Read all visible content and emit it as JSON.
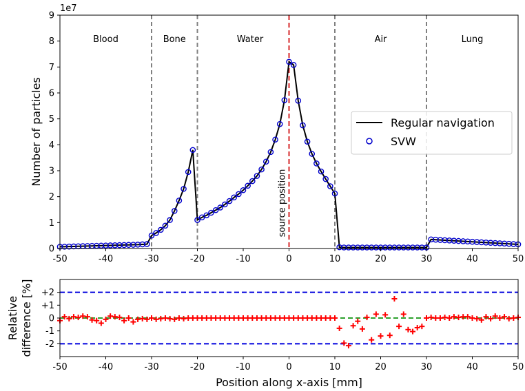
{
  "chart_data": [
    {
      "type": "line",
      "ylabel": "Number of particles",
      "y_multiplier_label": "1e7",
      "xlim": [
        -50,
        50
      ],
      "ylim": [
        0,
        9
      ],
      "x_ticks": [
        -50,
        -40,
        -30,
        -20,
        -10,
        0,
        10,
        20,
        30,
        40,
        50
      ],
      "x_tick_labels": [
        "-50",
        "-40",
        "-30",
        "-20",
        "-10",
        "0",
        "10",
        "20",
        "30",
        "40",
        "50"
      ],
      "y_ticks": [
        0,
        1,
        2,
        3,
        4,
        5,
        6,
        7,
        8,
        9
      ],
      "y_tick_labels": [
        "0",
        "1",
        "2",
        "3",
        "4",
        "5",
        "6",
        "7",
        "8",
        "9"
      ],
      "grid": false,
      "legend_placement": "center-right",
      "regions": [
        {
          "label": "Blood",
          "x_center": -40
        },
        {
          "label": "Bone",
          "x_center": -25
        },
        {
          "label": "Water",
          "x_center": -8.5
        },
        {
          "label": "Air",
          "x_center": 20
        },
        {
          "label": "Lung",
          "x_center": 40
        }
      ],
      "boundaries": [
        -30,
        -20,
        10,
        30
      ],
      "source_position": {
        "x": 0,
        "label": "source position",
        "color": "#d62728"
      },
      "series": [
        {
          "name": "Regular navigation",
          "style": "line",
          "color": "#000000",
          "x": [
            -50,
            -49,
            -48,
            -47,
            -46,
            -45,
            -44,
            -43,
            -42,
            -41,
            -40,
            -39,
            -38,
            -37,
            -36,
            -35,
            -34,
            -33,
            -32,
            -31,
            -30,
            -29,
            -28,
            -27,
            -26,
            -25,
            -24,
            -23,
            -22,
            -21,
            -20,
            -19,
            -18,
            -17,
            -16,
            -15,
            -14,
            -13,
            -12,
            -11,
            -10,
            -9,
            -8,
            -7,
            -6,
            -5,
            -4,
            -3,
            -2,
            -1,
            0,
            1,
            2,
            3,
            4,
            5,
            6,
            7,
            8,
            9,
            10,
            11,
            12,
            13,
            14,
            15,
            16,
            17,
            18,
            19,
            20,
            21,
            22,
            23,
            24,
            25,
            26,
            27,
            28,
            29,
            30,
            31,
            32,
            33,
            34,
            35,
            36,
            37,
            38,
            39,
            40,
            41,
            42,
            43,
            44,
            45,
            46,
            47,
            48,
            49,
            50
          ],
          "y": [
            0.07,
            0.07,
            0.075,
            0.08,
            0.085,
            0.09,
            0.095,
            0.1,
            0.105,
            0.11,
            0.115,
            0.12,
            0.125,
            0.13,
            0.135,
            0.14,
            0.145,
            0.15,
            0.16,
            0.17,
            0.5,
            0.6,
            0.72,
            0.88,
            1.1,
            1.45,
            1.85,
            2.3,
            2.95,
            3.8,
            1.1,
            1.2,
            1.28,
            1.38,
            1.48,
            1.58,
            1.7,
            1.83,
            1.97,
            2.1,
            2.25,
            2.42,
            2.6,
            2.8,
            3.05,
            3.35,
            3.72,
            4.2,
            4.8,
            5.72,
            7.2,
            7.08,
            5.7,
            4.75,
            4.12,
            3.65,
            3.28,
            2.97,
            2.68,
            2.4,
            2.12,
            0.05,
            0.04,
            0.04,
            0.04,
            0.04,
            0.04,
            0.04,
            0.04,
            0.04,
            0.04,
            0.04,
            0.04,
            0.04,
            0.04,
            0.04,
            0.04,
            0.04,
            0.04,
            0.04,
            0.04,
            0.35,
            0.34,
            0.33,
            0.32,
            0.31,
            0.3,
            0.29,
            0.28,
            0.27,
            0.26,
            0.25,
            0.24,
            0.23,
            0.22,
            0.21,
            0.2,
            0.19,
            0.18,
            0.17,
            0.16
          ]
        },
        {
          "name": "SVW",
          "style": "markers",
          "marker": "open-circle",
          "color": "#0000cc",
          "x": [
            -50,
            -49,
            -48,
            -47,
            -46,
            -45,
            -44,
            -43,
            -42,
            -41,
            -40,
            -39,
            -38,
            -37,
            -36,
            -35,
            -34,
            -33,
            -32,
            -31,
            -30,
            -29,
            -28,
            -27,
            -26,
            -25,
            -24,
            -23,
            -22,
            -21,
            -20,
            -19,
            -18,
            -17,
            -16,
            -15,
            -14,
            -13,
            -12,
            -11,
            -10,
            -9,
            -8,
            -7,
            -6,
            -5,
            -4,
            -3,
            -2,
            -1,
            0,
            1,
            2,
            3,
            4,
            5,
            6,
            7,
            8,
            9,
            10,
            11,
            12,
            13,
            14,
            15,
            16,
            17,
            18,
            19,
            20,
            21,
            22,
            23,
            24,
            25,
            26,
            27,
            28,
            29,
            30,
            31,
            32,
            33,
            34,
            35,
            36,
            37,
            38,
            39,
            40,
            41,
            42,
            43,
            44,
            45,
            46,
            47,
            48,
            49,
            50
          ],
          "y": [
            0.07,
            0.07,
            0.075,
            0.08,
            0.085,
            0.09,
            0.095,
            0.1,
            0.105,
            0.11,
            0.115,
            0.12,
            0.125,
            0.13,
            0.135,
            0.14,
            0.145,
            0.15,
            0.16,
            0.17,
            0.5,
            0.6,
            0.72,
            0.88,
            1.1,
            1.45,
            1.85,
            2.3,
            2.95,
            3.8,
            1.1,
            1.2,
            1.28,
            1.38,
            1.48,
            1.58,
            1.7,
            1.83,
            1.97,
            2.1,
            2.25,
            2.42,
            2.6,
            2.8,
            3.05,
            3.35,
            3.72,
            4.2,
            4.8,
            5.72,
            7.2,
            7.08,
            5.7,
            4.75,
            4.12,
            3.65,
            3.28,
            2.97,
            2.68,
            2.4,
            2.12,
            0.05,
            0.04,
            0.04,
            0.04,
            0.04,
            0.04,
            0.04,
            0.04,
            0.04,
            0.04,
            0.04,
            0.04,
            0.04,
            0.04,
            0.04,
            0.04,
            0.04,
            0.04,
            0.04,
            0.04,
            0.35,
            0.34,
            0.33,
            0.32,
            0.31,
            0.3,
            0.29,
            0.28,
            0.27,
            0.26,
            0.25,
            0.24,
            0.23,
            0.22,
            0.21,
            0.2,
            0.19,
            0.18,
            0.17,
            0.16
          ]
        }
      ]
    },
    {
      "type": "scatter",
      "xlabel": "Position along x-axis [mm]",
      "ylabel_lines": [
        "Relative",
        "difference [%]"
      ],
      "xlim": [
        -50,
        50
      ],
      "ylim": [
        -3,
        3
      ],
      "x_ticks": [
        -50,
        -40,
        -30,
        -20,
        -10,
        0,
        10,
        20,
        30,
        40,
        50
      ],
      "x_tick_labels": [
        "-50",
        "-40",
        "-30",
        "-20",
        "-10",
        "0",
        "10",
        "20",
        "30",
        "40",
        "50"
      ],
      "y_ticks": [
        2,
        1,
        0,
        -1,
        -2
      ],
      "y_tick_labels": [
        "+2",
        "+1",
        "0",
        "-1",
        "-2"
      ],
      "grid": false,
      "reference_lines": [
        {
          "y": 2,
          "color": "#0000dd"
        },
        {
          "y": -2,
          "color": "#0000dd"
        },
        {
          "y": 0,
          "color": "#2ca02c"
        }
      ],
      "series": [
        {
          "marker": "plus",
          "color": "#ff0000",
          "x": [
            -50,
            -49,
            -48,
            -47,
            -46,
            -45,
            -44,
            -43,
            -42,
            -41,
            -40,
            -39,
            -38,
            -37,
            -36,
            -35,
            -34,
            -33,
            -32,
            -31,
            -30,
            -29,
            -28,
            -27,
            -26,
            -25,
            -24,
            -23,
            -22,
            -21,
            -20,
            -19,
            -18,
            -17,
            -16,
            -15,
            -14,
            -13,
            -12,
            -11,
            -10,
            -9,
            -8,
            -7,
            -6,
            -5,
            -4,
            -3,
            -2,
            -1,
            0,
            1,
            2,
            3,
            4,
            5,
            6,
            7,
            8,
            9,
            10,
            11,
            12,
            13,
            14,
            15,
            16,
            17,
            18,
            19,
            20,
            21,
            22,
            23,
            24,
            25,
            26,
            27,
            28,
            29,
            30,
            31,
            32,
            33,
            34,
            35,
            36,
            37,
            38,
            39,
            40,
            41,
            42,
            43,
            44,
            45,
            46,
            47,
            48,
            49,
            50
          ],
          "y": [
            -0.2,
            0.1,
            -0.05,
            0.1,
            0.05,
            0.15,
            0.1,
            -0.15,
            -0.2,
            -0.4,
            -0.1,
            0.15,
            0.1,
            0.05,
            -0.2,
            0.0,
            -0.3,
            -0.1,
            -0.05,
            -0.1,
            0.0,
            -0.1,
            -0.05,
            0.0,
            -0.05,
            -0.1,
            0.0,
            -0.05,
            0.0,
            0.0,
            0.0,
            0.0,
            0.0,
            0.0,
            0.0,
            0.0,
            0.0,
            0.0,
            0.0,
            0.0,
            0.0,
            0.0,
            0.0,
            0.0,
            0.0,
            0.0,
            0.0,
            0.0,
            0.0,
            0.0,
            0.0,
            0.0,
            0.0,
            0.0,
            0.0,
            0.0,
            0.0,
            0.0,
            0.0,
            0.0,
            0.0,
            -0.8,
            -1.95,
            -2.15,
            -0.6,
            -0.25,
            -0.85,
            0.05,
            -1.7,
            0.3,
            -1.4,
            0.25,
            -1.35,
            1.5,
            -0.65,
            0.3,
            -0.9,
            -1.05,
            -0.75,
            -0.65,
            0.0,
            0.05,
            0.0,
            0.0,
            0.05,
            0.0,
            0.1,
            0.05,
            0.1,
            0.1,
            0.0,
            -0.05,
            -0.15,
            0.1,
            -0.05,
            0.15,
            0.0,
            0.1,
            -0.05,
            0.0,
            0.05
          ]
        }
      ]
    }
  ]
}
